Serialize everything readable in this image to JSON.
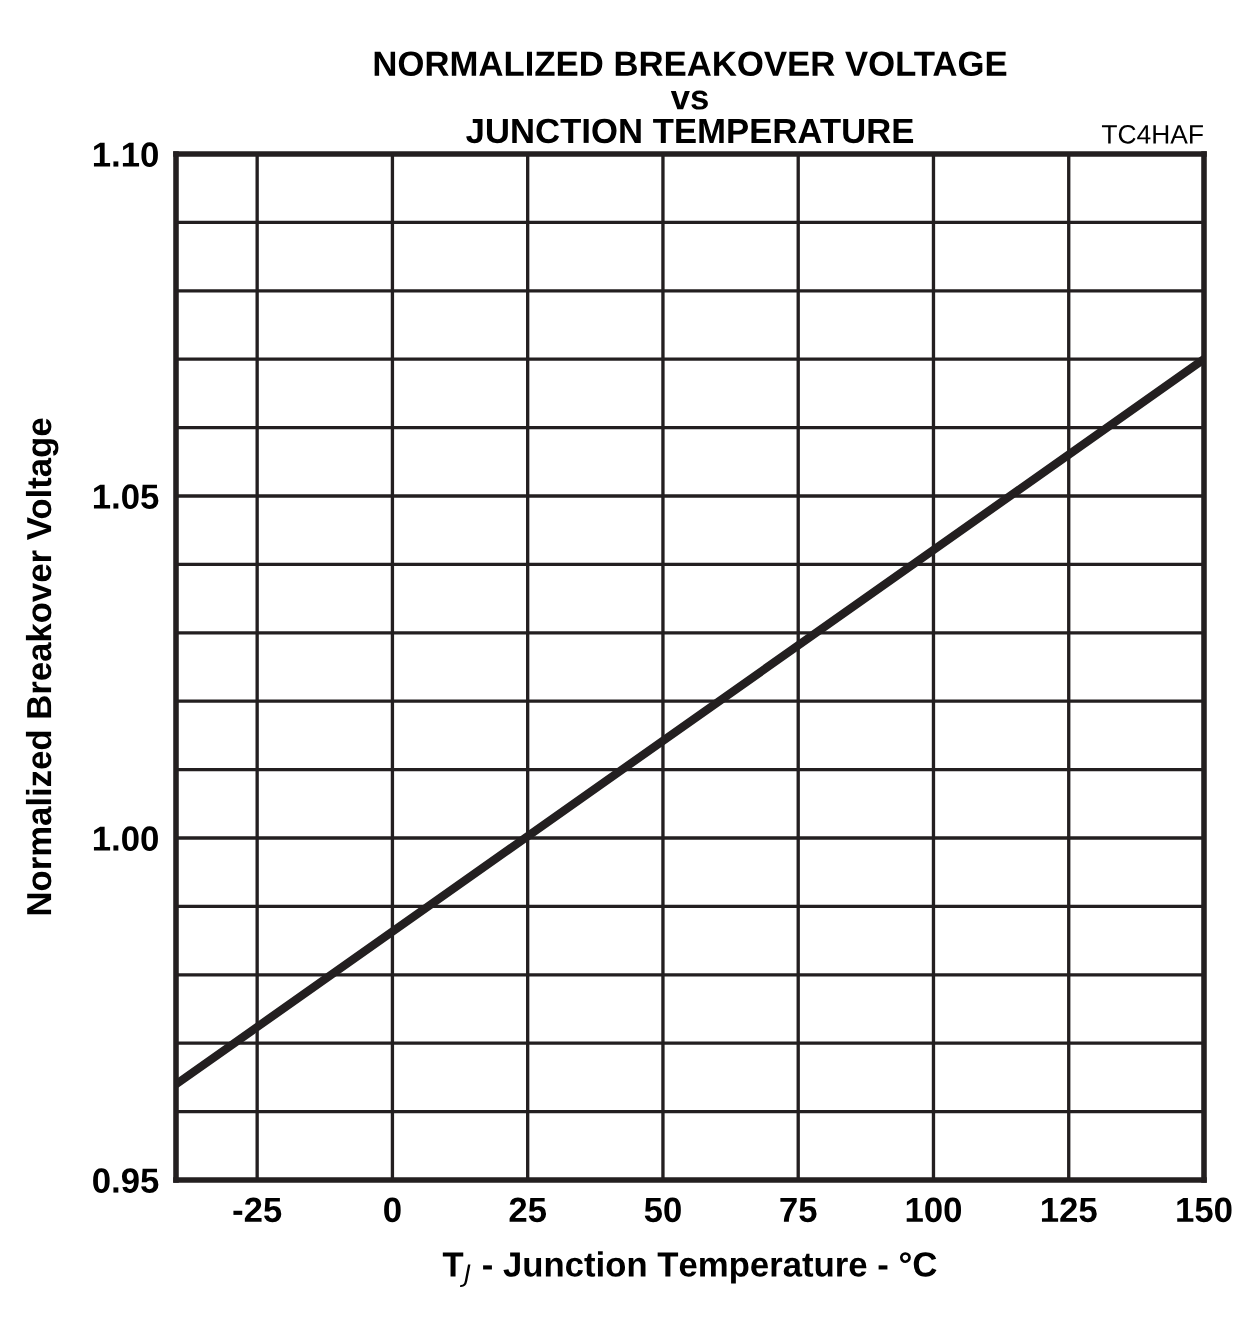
{
  "chart_data": {
    "type": "line",
    "title": "NORMALIZED BREAKOVER VOLTAGE\nvs\nJUNCTION TEMPERATURE",
    "xlabel": "T$_{J}$ - Junction Temperature - °C",
    "ylabel": "Normalized Breakover Voltage",
    "annotations": [
      "TC4HAF"
    ],
    "x": [
      -40,
      150
    ],
    "series": [
      {
        "color": "#231f20",
        "values": [
          0.964,
          1.07
        ]
      }
    ],
    "xlim": [
      -40,
      150
    ],
    "ylim": [
      0.95,
      1.1
    ],
    "xticks": [
      -25,
      0,
      25,
      50,
      75,
      100,
      125,
      150
    ],
    "yticks": [
      {
        "value": 0.95,
        "label": "0.95"
      },
      {
        "value": 0.96,
        "label": null
      },
      {
        "value": 0.97,
        "label": null
      },
      {
        "value": 0.98,
        "label": null
      },
      {
        "value": 0.99,
        "label": null
      },
      {
        "value": 1.0,
        "label": "1.00"
      },
      {
        "value": 1.01,
        "label": null
      },
      {
        "value": 1.02,
        "label": null
      },
      {
        "value": 1.03,
        "label": null
      },
      {
        "value": 1.04,
        "label": null
      },
      {
        "value": 1.05,
        "label": "1.05"
      },
      {
        "value": 1.06,
        "label": null
      },
      {
        "value": 1.07,
        "label": null
      },
      {
        "value": 1.08,
        "label": null
      },
      {
        "value": 1.09,
        "label": null
      },
      {
        "value": 1.1,
        "label": "1.10"
      }
    ],
    "grid": true,
    "legend": false,
    "marker": "none",
    "line_style": "solid"
  }
}
